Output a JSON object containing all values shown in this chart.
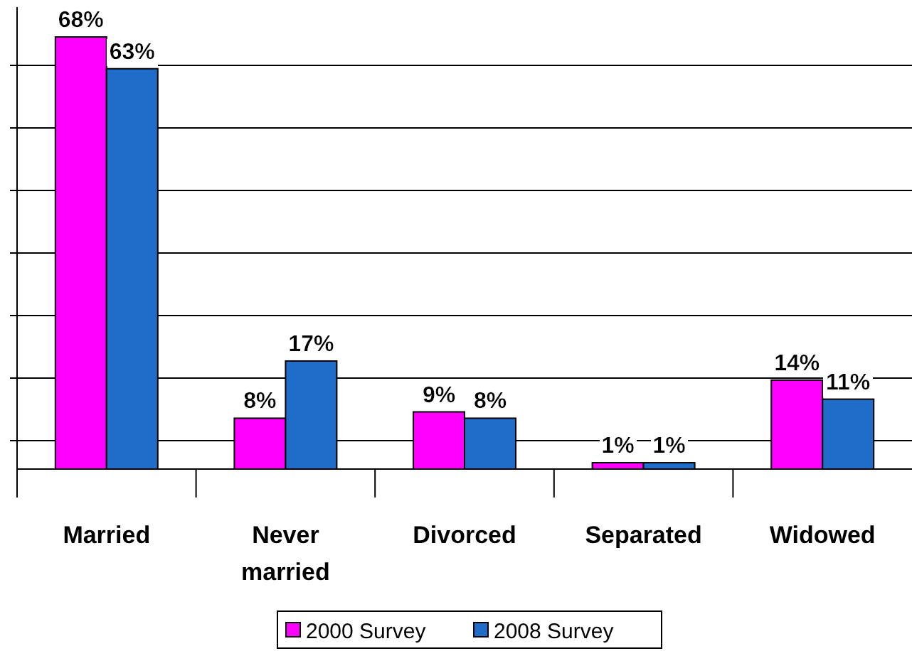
{
  "chart_data": {
    "type": "bar",
    "categories": [
      "Married",
      "Never married",
      "Divorced",
      "Separated",
      "Widowed"
    ],
    "series": [
      {
        "name": "2000 Survey",
        "color": "#ff00ff",
        "values": [
          68,
          8,
          9,
          1,
          14
        ],
        "value_labels": [
          "68%",
          "8%",
          "9%",
          "1%",
          "14%"
        ]
      },
      {
        "name": "2008 Survey",
        "color": "#1f6dc8",
        "values": [
          63,
          17,
          8,
          1,
          11
        ],
        "value_labels": [
          "63%",
          "17%",
          "8%",
          "1%",
          "11%"
        ]
      }
    ],
    "grid": "y",
    "legend": "bottom"
  }
}
